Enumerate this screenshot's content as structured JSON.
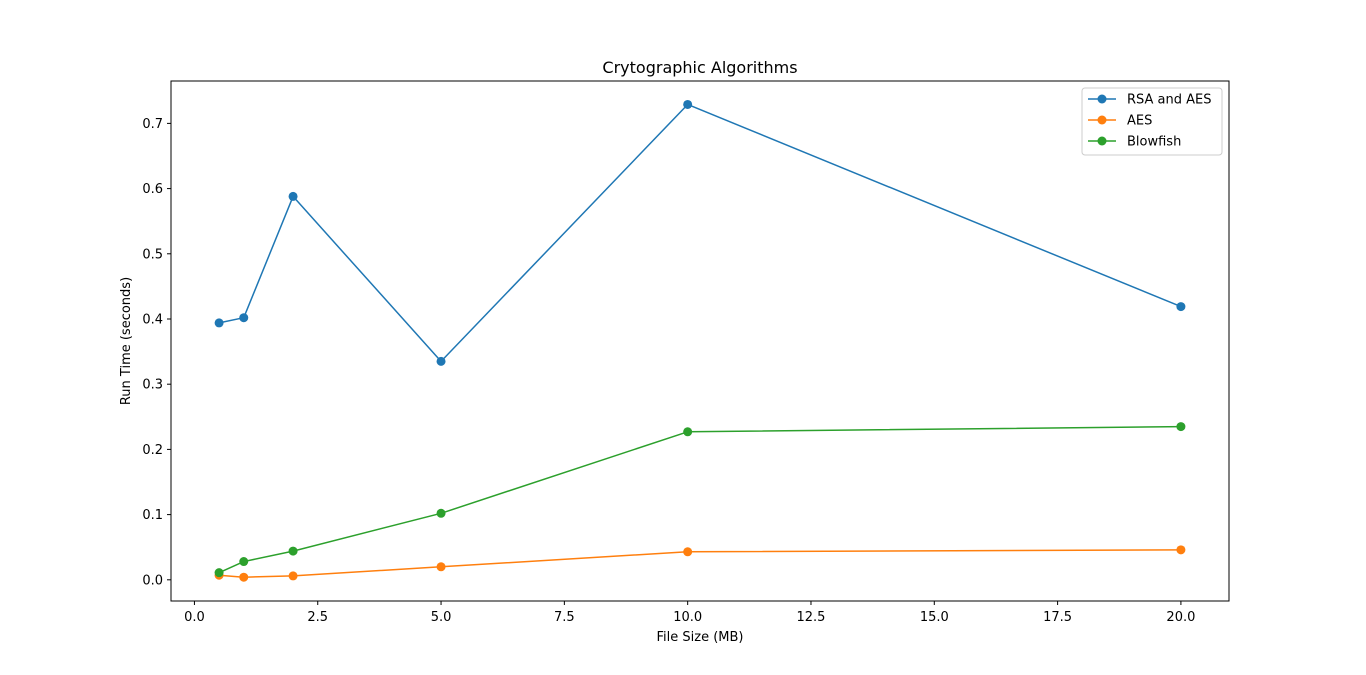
{
  "chart_data": {
    "type": "line",
    "title": "Crytographic Algorithms",
    "xlabel": "File Size (MB)",
    "ylabel": "Run Time (seconds)",
    "x": [
      0.5,
      1,
      2,
      5,
      10,
      20
    ],
    "xlim": [
      -0.475,
      20.975
    ],
    "ylim": [
      -0.0325,
      0.765
    ],
    "xticks": [
      0.0,
      2.5,
      5.0,
      7.5,
      10.0,
      12.5,
      15.0,
      17.5,
      20.0
    ],
    "xtick_labels": [
      "0.0",
      "2.5",
      "5.0",
      "7.5",
      "10.0",
      "12.5",
      "15.0",
      "17.5",
      "20.0"
    ],
    "yticks": [
      0.0,
      0.1,
      0.2,
      0.3,
      0.4,
      0.5,
      0.6,
      0.7
    ],
    "ytick_labels": [
      "0.0",
      "0.1",
      "0.2",
      "0.3",
      "0.4",
      "0.5",
      "0.6",
      "0.7"
    ],
    "grid": false,
    "legend_position": "top-right",
    "series": [
      {
        "name": "RSA and AES",
        "color": "#1f77b4",
        "values": [
          0.394,
          0.402,
          0.588,
          0.335,
          0.729,
          0.419
        ]
      },
      {
        "name": "AES",
        "color": "#ff7f0e",
        "values": [
          0.007,
          0.004,
          0.006,
          0.02,
          0.043,
          0.046
        ]
      },
      {
        "name": "Blowfish",
        "color": "#2ca02c",
        "values": [
          0.011,
          0.028,
          0.044,
          0.102,
          0.227,
          0.235
        ]
      }
    ]
  }
}
